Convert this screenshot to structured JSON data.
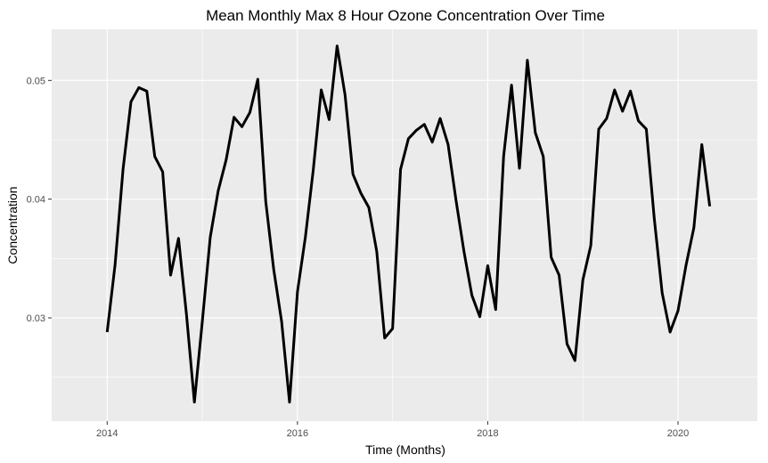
{
  "chart_data": {
    "type": "line",
    "title": "Mean Monthly Max 8 Hour Ozone Concentration Over Time",
    "xlabel": "Time (Months)",
    "ylabel": "Concentration",
    "x_ticks": [
      "2014",
      "2016",
      "2018",
      "2020"
    ],
    "y_ticks": [
      "0.03",
      "0.04",
      "0.05"
    ],
    "xlim": [
      "2013-06-01",
      "2020-11-01"
    ],
    "ylim": [
      0.0213,
      0.0543
    ],
    "grid": true,
    "legend": "none",
    "colors": {
      "panel": "#EBEBEB",
      "grid": "#FFFFFF",
      "line": "#000000"
    },
    "series": [
      {
        "x": [
          "2014-01",
          "2014-02",
          "2014-03",
          "2014-04",
          "2014-05",
          "2014-06",
          "2014-07",
          "2014-08",
          "2014-09",
          "2014-10",
          "2014-11",
          "2014-12",
          "2015-01",
          "2015-02",
          "2015-03",
          "2015-04",
          "2015-05",
          "2015-06",
          "2015-07",
          "2015-08",
          "2015-09",
          "2015-10",
          "2015-11",
          "2015-12",
          "2016-01",
          "2016-02",
          "2016-03",
          "2016-04",
          "2016-05",
          "2016-06",
          "2016-07",
          "2016-08",
          "2016-09",
          "2016-10",
          "2016-11",
          "2016-12",
          "2017-01",
          "2017-02",
          "2017-03",
          "2017-04",
          "2017-05",
          "2017-06",
          "2017-07",
          "2017-08",
          "2017-09",
          "2017-10",
          "2017-11",
          "2017-12",
          "2018-01",
          "2018-02",
          "2018-03",
          "2018-04",
          "2018-05",
          "2018-06",
          "2018-07",
          "2018-08",
          "2018-09",
          "2018-10",
          "2018-11",
          "2018-12",
          "2019-01",
          "2019-02",
          "2019-03",
          "2019-04",
          "2019-05",
          "2019-06",
          "2019-07",
          "2019-08",
          "2019-09",
          "2019-10",
          "2019-11",
          "2019-12",
          "2020-01",
          "2020-02",
          "2020-03",
          "2020-04",
          "2020-05"
        ],
        "values": [
          0.0288,
          0.0345,
          0.0425,
          0.0482,
          0.0494,
          0.0491,
          0.0436,
          0.0423,
          0.0336,
          0.0367,
          0.0303,
          0.0229,
          0.0297,
          0.0368,
          0.0407,
          0.0433,
          0.0469,
          0.0461,
          0.0473,
          0.0501,
          0.0398,
          0.0341,
          0.0297,
          0.0229,
          0.0322,
          0.0368,
          0.0425,
          0.0492,
          0.0467,
          0.0529,
          0.0488,
          0.0421,
          0.0405,
          0.0393,
          0.0356,
          0.0283,
          0.0291,
          0.0425,
          0.0451,
          0.0458,
          0.0463,
          0.0448,
          0.0468,
          0.0446,
          0.0399,
          0.0356,
          0.0319,
          0.0301,
          0.0344,
          0.0307,
          0.0436,
          0.0496,
          0.0426,
          0.0517,
          0.0456,
          0.0436,
          0.0351,
          0.0336,
          0.0278,
          0.0264,
          0.0332,
          0.0361,
          0.0459,
          0.0468,
          0.0492,
          0.0474,
          0.0491,
          0.0466,
          0.0459,
          0.0384,
          0.0321,
          0.0288,
          0.0306,
          0.0344,
          0.0376,
          0.0446,
          0.0394
        ]
      }
    ]
  }
}
